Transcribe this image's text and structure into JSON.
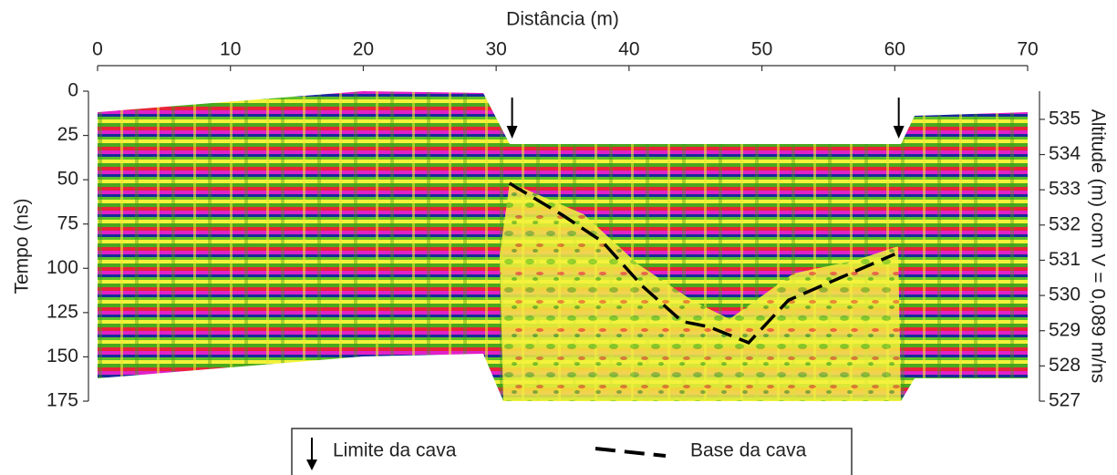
{
  "chart_data": {
    "type": "radargram",
    "xlabel": "Distância (m)",
    "ylabel": "Tempo (ns)",
    "y2label": "Altitude (m) com V = 0,089 m/ns",
    "xlim": [
      0,
      70
    ],
    "xticks": [
      0,
      10,
      20,
      30,
      40,
      50,
      60,
      70
    ],
    "ylim": [
      0,
      175
    ],
    "yticks": [
      0,
      25,
      50,
      75,
      100,
      125,
      150,
      175
    ],
    "y2lim": [
      527,
      535.8
    ],
    "y2ticks": [
      527,
      528,
      529,
      530,
      531,
      532,
      533,
      534,
      535
    ],
    "series": [
      {
        "name": "Base da cava",
        "color": "#000000",
        "x": [
          31,
          35,
          38,
          41,
          44,
          46,
          49,
          52,
          56,
          60
        ],
        "values": [
          52,
          70,
          85,
          110,
          130,
          133,
          142,
          118,
          105,
          92
        ]
      }
    ],
    "markers": {
      "name": "Limite da cava",
      "color": "#000000",
      "x": [
        31.2,
        60.3
      ]
    }
  }
}
